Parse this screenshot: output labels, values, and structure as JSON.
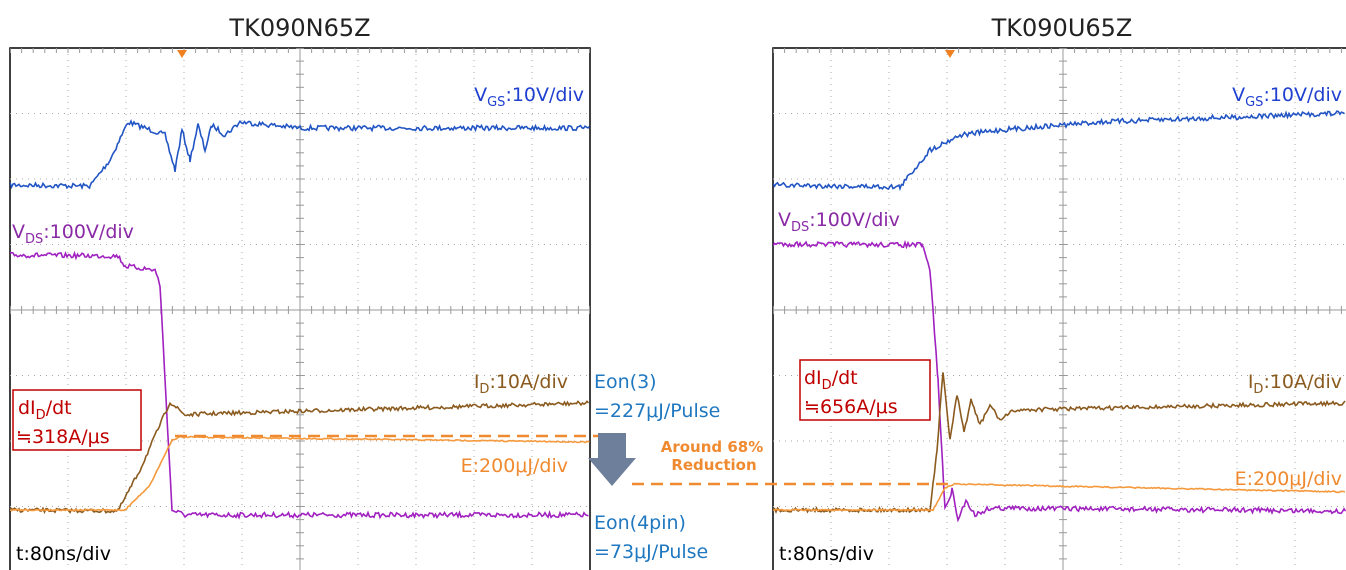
{
  "panels": [
    {
      "title": "TK090N65Z",
      "vgs": {
        "symbol": "V",
        "sub": "GS",
        "scale": ":10V/div"
      },
      "vds": {
        "symbol": "V",
        "sub": "DS",
        "scale": ":100V/div"
      },
      "id": {
        "symbol": "I",
        "sub": "D",
        "scale": ":10A/div"
      },
      "energy": "E:200μJ/div",
      "slope": {
        "symbol": "dI",
        "sub": "D",
        "suffix": "/dt",
        "value": "≒318A/μs"
      },
      "time": "t:80ns/div"
    },
    {
      "title": "TK090U65Z",
      "vgs": {
        "symbol": "V",
        "sub": "GS",
        "scale": ":10V/div"
      },
      "vds": {
        "symbol": "V",
        "sub": "DS",
        "scale": ":100V/div"
      },
      "id": {
        "symbol": "I",
        "sub": "D",
        "scale": ":10A/div"
      },
      "energy": "E:200μJ/div",
      "slope": {
        "symbol": "dI",
        "sub": "D",
        "suffix": "/dt",
        "value": "≒656A/μs"
      },
      "time": "t:80ns/div"
    }
  ],
  "comparison": {
    "eon_3": {
      "label": "Eon(3)",
      "value": "=227μJ/Pulse"
    },
    "eon_4pin": {
      "label": "Eon(4pin)",
      "value": "=73μJ/Pulse"
    },
    "reduction": [
      "Around 68%",
      "Reduction"
    ]
  }
}
